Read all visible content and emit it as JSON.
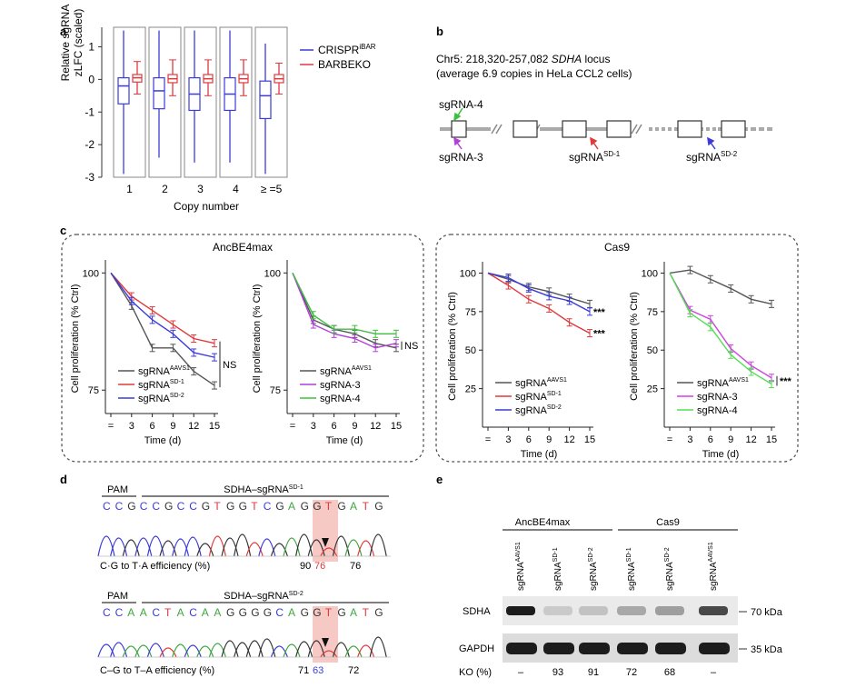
{
  "panels": {
    "a": "a",
    "b": "b",
    "c": "c",
    "d": "d",
    "e": "e"
  },
  "panel_a": {
    "chart_data": {
      "type": "boxplot",
      "ylabel_line1": "Relative sgRNA",
      "ylabel_line2": "zLFC (scaled)",
      "xlabel": "Copy number",
      "categories": [
        "1",
        "2",
        "3",
        "4",
        "≥ =5"
      ],
      "yticks": [
        "1",
        "0",
        "-1",
        "-2",
        "-3"
      ],
      "ylim": [
        -3,
        1.6
      ],
      "series": [
        {
          "name": "CRISPR",
          "superscript": "iBAR",
          "color": "#3b3bd9",
          "boxes": [
            {
              "wlo": -2.9,
              "q1": -0.75,
              "med": -0.2,
              "q3": 0.05,
              "whi": 1.5
            },
            {
              "wlo": -2.4,
              "q1": -0.9,
              "med": -0.35,
              "q3": 0.05,
              "whi": 1.5
            },
            {
              "wlo": -2.55,
              "q1": -0.95,
              "med": -0.45,
              "q3": 0.05,
              "whi": 1.5
            },
            {
              "wlo": -2.55,
              "q1": -0.95,
              "med": -0.45,
              "q3": 0.05,
              "whi": 1.5
            },
            {
              "wlo": -2.9,
              "q1": -1.2,
              "med": -0.5,
              "q3": -0.05,
              "whi": 1.1
            }
          ]
        },
        {
          "name": "BARBEKO",
          "superscript": "",
          "color": "#e0393b",
          "boxes": [
            {
              "wlo": -0.45,
              "q1": -0.08,
              "med": 0.05,
              "q3": 0.15,
              "whi": 0.55
            },
            {
              "wlo": -0.5,
              "q1": -0.1,
              "med": 0.02,
              "q3": 0.15,
              "whi": 0.6
            },
            {
              "wlo": -0.5,
              "q1": -0.1,
              "med": 0.02,
              "q3": 0.15,
              "whi": 0.6
            },
            {
              "wlo": -0.5,
              "q1": -0.1,
              "med": 0.02,
              "q3": 0.15,
              "whi": 0.6
            },
            {
              "wlo": -0.45,
              "q1": -0.1,
              "med": 0.02,
              "q3": 0.15,
              "whi": 0.5
            }
          ]
        }
      ]
    }
  },
  "panel_b": {
    "title_prefix": "Chr5: 218,320-257,082 ",
    "title_gene": "SDHA",
    "title_suffix": " locus",
    "subtitle": "(average 6.9 copies in HeLa CCL2 cells)",
    "sg4": "sgRNA-4",
    "sg3": "sgRNA-3",
    "sgA_base": "sgRNA",
    "sgA_sup": "SD-1",
    "sgB_base": "sgRNA",
    "sgB_sup": "SD-2",
    "colors": {
      "sg4": "#3fbf3f",
      "sg3": "#b23fd9",
      "sgA": "#e0393b",
      "sgB": "#3b3bd9"
    }
  },
  "panel_c": {
    "group1_title": "AncBE4max",
    "group2_title": "Cas9",
    "ylabel": "Cell proliferation (% Ctrl)",
    "xlabel": "Time (d)",
    "xticks": [
      "=",
      "3",
      "6",
      "9",
      "12",
      "15"
    ],
    "yticks": [
      "100",
      "75",
      "50",
      "25"
    ],
    "ns": "NS",
    "stars": "***",
    "chart_data": [
      {
        "type": "line",
        "id": "c1",
        "ylim": [
          70,
          102
        ],
        "x": [
          0,
          3,
          6,
          9,
          12,
          15
        ],
        "series": [
          {
            "name": "sgRNA",
            "sup": "AAVS1",
            "color": "#555555",
            "values": [
              100,
              93,
              84,
              84,
              79,
              76
            ]
          },
          {
            "name": "sgRNA",
            "sup": "SD-1",
            "color": "#e0393b",
            "values": [
              100,
              95,
              92,
              89,
              86,
              85
            ]
          },
          {
            "name": "sgRNA",
            "sup": "SD-2",
            "color": "#3b3bd9",
            "values": [
              100,
              94,
              90,
              87,
              83,
              82
            ]
          }
        ]
      },
      {
        "type": "line",
        "id": "c2",
        "ylim": [
          70,
          102
        ],
        "x": [
          0,
          3,
          6,
          9,
          12,
          15
        ],
        "series": [
          {
            "name": "sgRNA",
            "sup": "AAVS1",
            "color": "#555555",
            "values": [
              100,
              90,
              88,
              87,
              85,
              84
            ]
          },
          {
            "name": "sgRNA-3",
            "sup": "",
            "color": "#b23fd9",
            "values": [
              100,
              89,
              87,
              86,
              84,
              85
            ]
          },
          {
            "name": "sgRNA-4",
            "sup": "",
            "color": "#3fbf3f",
            "values": [
              100,
              91,
              88,
              88,
              87,
              87
            ]
          }
        ]
      },
      {
        "type": "line",
        "id": "c3",
        "ylim": [
          0,
          105
        ],
        "x": [
          0,
          3,
          6,
          9,
          12,
          15
        ],
        "series": [
          {
            "name": "sgRNA",
            "sup": "AAVS1",
            "color": "#555555",
            "values": [
              100,
              96,
              91,
              88,
              84,
              80
            ]
          },
          {
            "name": "sgRNA",
            "sup": "SD-1",
            "color": "#e0393b",
            "values": [
              100,
              92,
              83,
              77,
              68,
              61
            ]
          },
          {
            "name": "sgRNA",
            "sup": "SD-2",
            "color": "#3b3bd9",
            "values": [
              100,
              97,
              90,
              85,
              82,
              75
            ]
          }
        ]
      },
      {
        "type": "line",
        "id": "c4",
        "ylim": [
          0,
          105
        ],
        "x": [
          0,
          3,
          6,
          9,
          12,
          15
        ],
        "series": [
          {
            "name": "sgRNA",
            "sup": "AAVS1",
            "color": "#555555",
            "values": [
              100,
              102,
              96,
              90,
              83,
              80
            ]
          },
          {
            "name": "sgRNA-3",
            "sup": "",
            "color": "#cc44dd",
            "values": [
              100,
              76,
              70,
              51,
              40,
              32
            ]
          },
          {
            "name": "sgRNA-4",
            "sup": "",
            "color": "#55dd55",
            "values": [
              100,
              74,
              65,
              47,
              36,
              28
            ]
          }
        ]
      }
    ]
  },
  "panel_d": {
    "pam": "PAM",
    "guide1_base": "SDHA–sgRNA",
    "guide1_sup": "SD-1",
    "guide2_base": "SDHA–sgRNA",
    "guide2_sup": "SD-2",
    "seq1": [
      "C",
      "C",
      "G",
      "C",
      "C",
      "G",
      "C",
      "C",
      "G",
      "T",
      "G",
      "G",
      "T",
      "C",
      "G",
      "A",
      "G",
      "G",
      "T",
      "G",
      "A",
      "T",
      "G"
    ],
    "seq2": [
      "C",
      "C",
      "A",
      "A",
      "C",
      "T",
      "A",
      "C",
      "A",
      "A",
      "G",
      "G",
      "G",
      "G",
      "C",
      "A",
      "G",
      "G",
      "T",
      "G",
      "A",
      "T",
      "G"
    ],
    "eff1_label": "C·G to T·A efficiency (%)",
    "eff1_values": [
      "90",
      "76",
      "76"
    ],
    "eff2_label": "C–G to T–A efficiency (%)",
    "eff2_values": [
      "71",
      "63",
      "72"
    ],
    "base_colors": {
      "A": "#3fa63f",
      "C": "#3b3bd9",
      "G": "#333333",
      "T": "#e0393b"
    }
  },
  "panel_e": {
    "group1": "AncBE4max",
    "group2": "Cas9",
    "lanes": [
      {
        "base": "sgRNA",
        "sup": "AAVS1"
      },
      {
        "base": "sgRNA",
        "sup": "SD-1"
      },
      {
        "base": "sgRNA",
        "sup": "SD-2"
      },
      {
        "base": "sgRNA",
        "sup": "SD-1"
      },
      {
        "base": "sgRNA",
        "sup": "SD-2"
      },
      {
        "base": "sgRNA",
        "sup": "AAVS1"
      }
    ],
    "row1": "SDHA",
    "row2": "GAPDH",
    "mw1": "70 kDa",
    "mw2": "35 kDa",
    "ko_label": "KO (%)",
    "ko_values": [
      "–",
      "93",
      "91",
      "72",
      "68",
      "–"
    ],
    "sdha_intensity": [
      0.95,
      0.15,
      0.18,
      0.3,
      0.35,
      0.75
    ],
    "gapdh_intensity": [
      0.95,
      0.95,
      0.95,
      0.95,
      0.95,
      0.95
    ]
  }
}
